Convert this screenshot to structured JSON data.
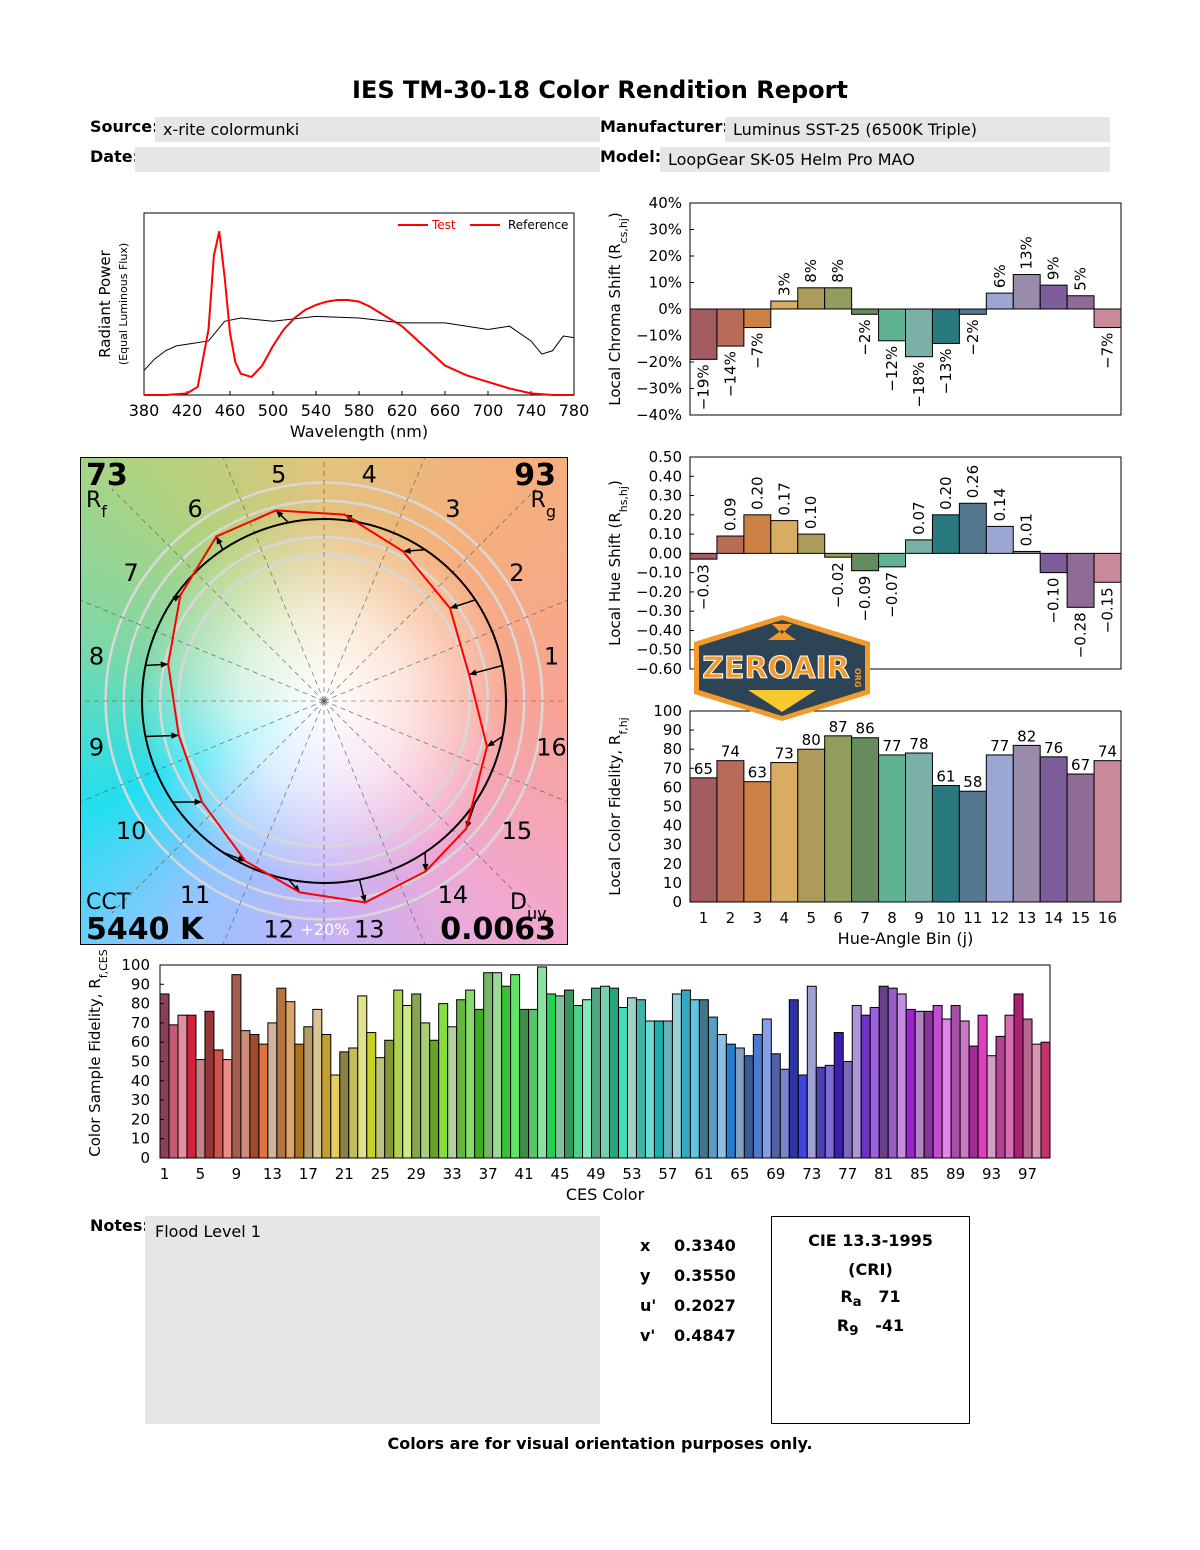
{
  "header": {
    "title": "IES TM-30-18 Color Rendition Report",
    "source_label": "Source:",
    "source": "x-rite colormunki",
    "manufacturer_label": "Manufacturer:",
    "manufacturer": "Luminus SST-25 (6500K Triple)",
    "date_label": "Date:",
    "date": "",
    "model_label": "Model:",
    "model": "LoopGear SK-05 Helm Pro MAO"
  },
  "colors": {
    "test": "#ff0000",
    "reference": "#000000",
    "bins": [
      "#a35c60",
      "#b86b56",
      "#cc8145",
      "#d8ac62",
      "#ac9b5c",
      "#919e5d",
      "#668b5e",
      "#61b290",
      "#7bb0a6",
      "#297a7e",
      "#55788f",
      "#9ba6d4",
      "#988caa",
      "#7d5d9a",
      "#8f6c94",
      "#c88a99"
    ]
  },
  "chart_data": [
    {
      "id": "spectrum",
      "type": "line",
      "xlabel": "Wavelength (nm)",
      "ylabel": "Radiant Power",
      "ylabel2": "(Equal Luminous Flux)",
      "xlim": [
        380,
        780
      ],
      "xticks": [
        380,
        420,
        460,
        500,
        540,
        580,
        620,
        660,
        700,
        740,
        780
      ],
      "legend_placement": "top-right",
      "series": [
        {
          "name": "Test",
          "x": [
            380,
            400,
            420,
            430,
            440,
            445,
            450,
            455,
            460,
            465,
            470,
            480,
            490,
            500,
            510,
            520,
            530,
            540,
            550,
            560,
            570,
            580,
            590,
            600,
            620,
            640,
            660,
            680,
            700,
            720,
            740,
            760,
            780
          ],
          "values": [
            0,
            0,
            1,
            5,
            40,
            85,
            100,
            72,
            38,
            20,
            13,
            11,
            18,
            30,
            40,
            47,
            52,
            55,
            57,
            58,
            58,
            57,
            54,
            50,
            42,
            30,
            18,
            12,
            8,
            4,
            1,
            0,
            0
          ]
        },
        {
          "name": "Reference",
          "x": [
            380,
            390,
            400,
            410,
            420,
            440,
            455,
            470,
            500,
            540,
            580,
            620,
            660,
            700,
            720,
            740,
            750,
            760,
            770,
            780
          ],
          "values": [
            15,
            22,
            27,
            30,
            31,
            33,
            45,
            47,
            45,
            48,
            47,
            44,
            44,
            40,
            42,
            33,
            25,
            27,
            36,
            35
          ]
        }
      ]
    },
    {
      "id": "chroma",
      "type": "bar",
      "ylabel": "Local Chroma Shift (R",
      "ylabel_sub": "cs,hj",
      "ylabel_end": ")",
      "ylim": [
        -40,
        40
      ],
      "yticks": [
        -40,
        -30,
        -20,
        -10,
        0,
        10,
        20,
        30,
        40
      ],
      "unit": "%",
      "categories": [
        1,
        2,
        3,
        4,
        5,
        6,
        7,
        8,
        9,
        10,
        11,
        12,
        13,
        14,
        15,
        16
      ],
      "values": [
        -19,
        -14,
        -7,
        3,
        8,
        8,
        -2,
        -12,
        -18,
        -13,
        -2,
        6,
        13,
        9,
        5,
        -7
      ]
    },
    {
      "id": "hue",
      "type": "bar",
      "ylabel": "Local Hue Shift (R",
      "ylabel_sub": "hs,hj",
      "ylabel_end": ")",
      "ylim": [
        -0.6,
        0.5
      ],
      "yticks": [
        -0.6,
        -0.5,
        -0.4,
        -0.3,
        -0.2,
        -0.1,
        0,
        0.1,
        0.2,
        0.3,
        0.4,
        0.5
      ],
      "categories": [
        1,
        2,
        3,
        4,
        5,
        6,
        7,
        8,
        9,
        10,
        11,
        12,
        13,
        14,
        15,
        16
      ],
      "values": [
        -0.03,
        0.09,
        0.2,
        0.17,
        0.1,
        -0.02,
        -0.09,
        -0.07,
        0.07,
        0.2,
        0.26,
        0.14,
        0.01,
        -0.1,
        -0.28,
        -0.15
      ]
    },
    {
      "id": "fidelity",
      "type": "bar",
      "ylabel": "Local Color Fidelity, R",
      "ylabel_sub": "f,hj",
      "xlabel": "Hue-Angle Bin (j)",
      "ylim": [
        0,
        100
      ],
      "yticks": [
        0,
        10,
        20,
        30,
        40,
        50,
        60,
        70,
        80,
        90,
        100
      ],
      "categories": [
        1,
        2,
        3,
        4,
        5,
        6,
        7,
        8,
        9,
        10,
        11,
        12,
        13,
        14,
        15,
        16
      ],
      "values": [
        65,
        74,
        63,
        73,
        80,
        87,
        86,
        77,
        78,
        61,
        58,
        77,
        82,
        76,
        67,
        74
      ]
    },
    {
      "id": "ces",
      "type": "bar",
      "ylabel": "Color Sample Fidelity, R",
      "ylabel_sub": "f,CESi",
      "xlabel": "CES Color",
      "ylim": [
        0,
        100
      ],
      "yticks": [
        0,
        10,
        20,
        30,
        40,
        50,
        60,
        70,
        80,
        90,
        100
      ],
      "xticks": [
        1,
        5,
        9,
        13,
        17,
        21,
        25,
        29,
        33,
        37,
        41,
        45,
        49,
        53,
        57,
        61,
        65,
        69,
        73,
        77,
        81,
        85,
        89,
        93,
        97
      ],
      "values": [
        85,
        69,
        74,
        74,
        51,
        76,
        56,
        51,
        95,
        66,
        64,
        59,
        70,
        88,
        81,
        59,
        68,
        77,
        64,
        43,
        55,
        57,
        84,
        65,
        52,
        61,
        87,
        79,
        85,
        70,
        61,
        80,
        68,
        82,
        87,
        77,
        96,
        96,
        89,
        95,
        77,
        77,
        99,
        85,
        84,
        87,
        79,
        82,
        88,
        89,
        88,
        78,
        83,
        82,
        71,
        71,
        71,
        85,
        87,
        82,
        82,
        73,
        64,
        59,
        57,
        53,
        64,
        72,
        54,
        46,
        82,
        43,
        89,
        47,
        48,
        65,
        50,
        79,
        74,
        78,
        89,
        88,
        85,
        77,
        76,
        76,
        79,
        72,
        79,
        71,
        58,
        74,
        53,
        63,
        74,
        85,
        72,
        59,
        60
      ]
    },
    {
      "id": "vector",
      "type": "scatter",
      "rf_value": "73",
      "rf_label": "R",
      "rf_sub": "f",
      "rg_value": "93",
      "rg_label": "R",
      "rg_sub": "g",
      "cct_label": "CCT",
      "cct_value": "5440 K",
      "duv_label": "D",
      "duv_sub": "uv",
      "duv_value": "0.0063",
      "scale_label": "+20%",
      "bins": [
        1,
        2,
        3,
        4,
        5,
        6,
        7,
        8,
        9,
        10,
        11,
        12,
        13,
        14,
        15,
        16
      ]
    }
  ],
  "logo": {
    "text": "ZEROAIR",
    "suffix": "ORG"
  },
  "notes": {
    "label": "Notes:",
    "text": "Flood Level 1"
  },
  "chromaticity": [
    {
      "k": "x",
      "v": "0.3340"
    },
    {
      "k": "y",
      "v": "0.3550"
    },
    {
      "k": "u'",
      "v": "0.2027"
    },
    {
      "k": "v'",
      "v": "0.4847"
    }
  ],
  "cri": {
    "title": "CIE 13.3-1995",
    "subtitle": "(CRI)",
    "ra_label": "R",
    "ra_sub": "a",
    "ra": "71",
    "r9_label": "R",
    "r9_sub": "9",
    "r9": "-41"
  },
  "footer": "Colors are for visual orientation purposes only."
}
